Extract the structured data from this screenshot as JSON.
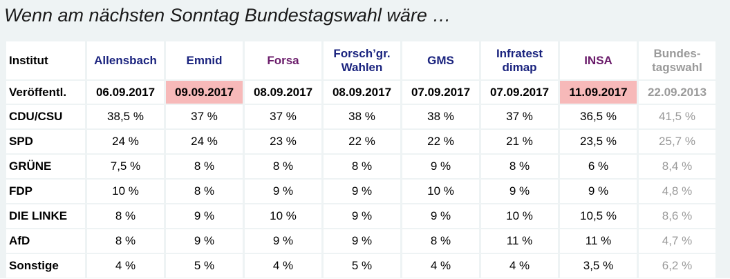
{
  "title": "Wenn am nächsten Sonntag Bundestagswahl wäre …",
  "header": {
    "label": "Institut",
    "institutes": [
      {
        "name": "Allensbach",
        "color": "#1a237e"
      },
      {
        "name": "Emnid",
        "color": "#1a237e"
      },
      {
        "name": "Forsa",
        "color": "#6a1b6a"
      },
      {
        "name": "Forsch’gr.\nWahlen",
        "color": "#1a237e"
      },
      {
        "name": "GMS",
        "color": "#1a237e"
      },
      {
        "name": "Infratest\ndimap",
        "color": "#1a237e"
      },
      {
        "name": "INSA",
        "color": "#6a1b6a"
      },
      {
        "name": "Bundes-\ntagswahl",
        "color": "#9a9a9a"
      }
    ]
  },
  "dates": {
    "label": "Veröffentl.",
    "values": [
      "06.09.2017",
      "09.09.2017",
      "08.09.2017",
      "08.09.2017",
      "07.09.2017",
      "07.09.2017",
      "11.09.2017",
      "22.09.2013"
    ],
    "highlight_color": "#f7b9b9"
  },
  "rows": [
    {
      "party": "CDU/CSU",
      "values": [
        "38,5 %",
        "37 %",
        "37 %",
        "38 %",
        "38 %",
        "37 %",
        "36,5 %",
        "41,5 %"
      ]
    },
    {
      "party": "SPD",
      "values": [
        "24 %",
        "24 %",
        "23 %",
        "22 %",
        "22 %",
        "21 %",
        "23,5 %",
        "25,7 %"
      ]
    },
    {
      "party": "GRÜNE",
      "values": [
        "7,5 %",
        "8 %",
        "8 %",
        "8 %",
        "9 %",
        "8 %",
        "6 %",
        "8,4 %"
      ]
    },
    {
      "party": "FDP",
      "values": [
        "10 %",
        "8 %",
        "9 %",
        "9 %",
        "10 %",
        "9 %",
        "9 %",
        "4,8 %"
      ]
    },
    {
      "party": "DIE LINKE",
      "values": [
        "8 %",
        "9 %",
        "10 %",
        "9 %",
        "9 %",
        "10 %",
        "10,5 %",
        "8,6 %"
      ]
    },
    {
      "party": "AfD",
      "values": [
        "8 %",
        "9 %",
        "9 %",
        "9 %",
        "8 %",
        "11 %",
        "11 %",
        "4,7 %"
      ]
    },
    {
      "party": "Sonstige",
      "values": [
        "4 %",
        "5 %",
        "4 %",
        "5 %",
        "4 %",
        "4 %",
        "3,5 %",
        "6,2 %"
      ]
    }
  ]
}
